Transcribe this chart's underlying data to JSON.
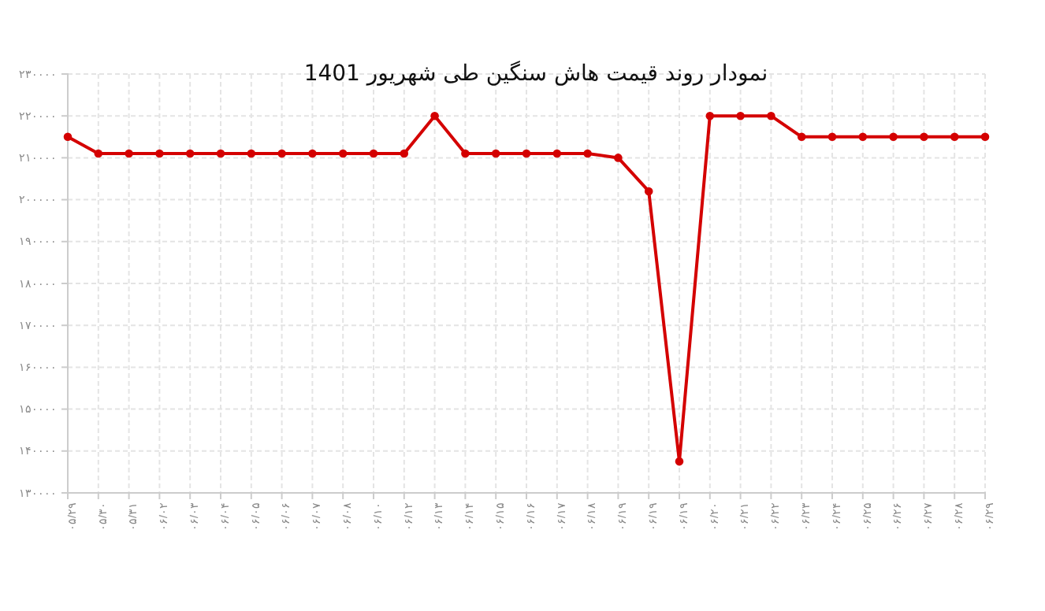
{
  "chart_data": {
    "type": "line",
    "title": "نمودار روند قیمت هاش سنگین طی شهریور 1401",
    "categories": [
      "۰۵/۲۹",
      "۰۵/۳۰",
      "۰۵/۳۱",
      "۰۶/۰۲",
      "۰۶/۰۳",
      "۰۶/۰۴",
      "۰۶/۰۵",
      "۰۶/۰۶",
      "۰۶/۰۷",
      "۰۶/۰۸",
      "۰۶/۱۰",
      "۰۶/۱۲",
      "۰۶/۱۳",
      "۰۶/۱۴",
      "۰۶/۱۵",
      "۰۶/۱۶",
      "۰۶/۱۷",
      "۰۶/۱۸",
      "۰۶/۱۹",
      "۰۶/۱۹",
      "۰۶/۱۹",
      "۰۶/۲۰",
      "۰۶/۲۱",
      "۰۶/۲۲",
      "۰۶/۲۳",
      "۰۶/۲۴",
      "۰۶/۲۵",
      "۰۶/۲۶",
      "۰۶/۲۷",
      "۰۶/۲۸",
      "۰۶/۲۹"
    ],
    "series": [
      {
        "color": "#d40000",
        "values": [
          215000,
          211000,
          211000,
          211000,
          211000,
          211000,
          211000,
          211000,
          211000,
          211000,
          211000,
          211000,
          220000,
          211000,
          211000,
          211000,
          211000,
          211000,
          210000,
          202000,
          137500,
          220000,
          220000,
          220000,
          215000,
          215000,
          215000,
          215000,
          215000,
          215000,
          215000
        ]
      }
    ],
    "ylim": [
      130000,
      230000
    ],
    "yticks": [
      {
        "value": 130000,
        "label": "۱۳۰۰۰۰"
      },
      {
        "value": 140000,
        "label": "۱۴۰۰۰۰"
      },
      {
        "value": 150000,
        "label": "۱۵۰۰۰۰"
      },
      {
        "value": 160000,
        "label": "۱۶۰۰۰۰"
      },
      {
        "value": 170000,
        "label": "۱۷۰۰۰۰"
      },
      {
        "value": 180000,
        "label": "۱۸۰۰۰۰"
      },
      {
        "value": 190000,
        "label": "۱۹۰۰۰۰"
      },
      {
        "value": 200000,
        "label": "۲۰۰۰۰۰"
      },
      {
        "value": 210000,
        "label": "۲۱۰۰۰۰"
      },
      {
        "value": 220000,
        "label": "۲۲۰۰۰۰"
      },
      {
        "value": 230000,
        "label": "۲۳۰۰۰۰"
      }
    ],
    "grid": true,
    "marker": "circle",
    "line_style": "solid"
  }
}
